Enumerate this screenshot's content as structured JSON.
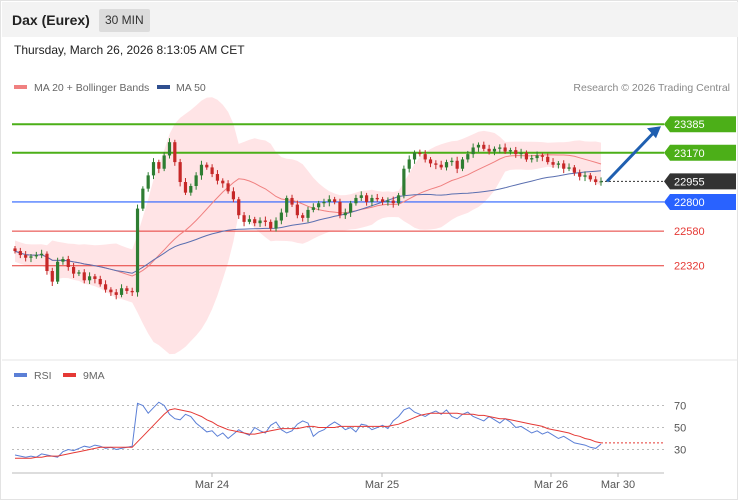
{
  "header": {
    "title": "Dax (Eurex)",
    "timeframe": "30 MIN"
  },
  "timestamp": "Thursday, March 26, 2026 8:13:05 AM CET",
  "copyright": "Research © 2026 Trading Central",
  "colors": {
    "candle_up": "#2e7d32",
    "candle_down": "#c62828",
    "band_fill": "#ffcdd2",
    "ma20": "#ef5350",
    "ma50": "#3f51b5",
    "resistance": "#4caf18",
    "pivot": "#2962ff",
    "support": "#e53935",
    "last_price": "#333333",
    "forecast_arrow": "#1f5fb0",
    "rsi": "#5b7fd6",
    "rsi_ma": "#e53935"
  },
  "chart_data": [
    {
      "type": "candlestick",
      "name": "price",
      "title": "Dax (Eurex)",
      "legend": [
        {
          "label": "MA 20 + Bollinger Bands",
          "color": "#f08080"
        },
        {
          "label": "MA 50",
          "color": "#2f4f8f"
        }
      ],
      "levels": [
        {
          "value": 23385,
          "label": "23385",
          "kind": "resistance"
        },
        {
          "value": 23170,
          "label": "23170",
          "kind": "resistance"
        },
        {
          "value": 22955,
          "label": "22955",
          "kind": "last"
        },
        {
          "value": 22800,
          "label": "22800",
          "kind": "pivot"
        },
        {
          "value": 22580,
          "label": "22580",
          "kind": "support"
        },
        {
          "value": 22320,
          "label": "22320",
          "kind": "support"
        }
      ],
      "x_ticks": [
        "Mar 24",
        "Mar 25",
        "Mar 26",
        "Mar 30"
      ],
      "y_range": [
        21640,
        23560
      ],
      "candles_approx_close": [
        22430,
        22400,
        22380,
        22390,
        22400,
        22410,
        22280,
        22200,
        22350,
        22370,
        22310,
        22260,
        22270,
        22210,
        22240,
        22220,
        22180,
        22140,
        22120,
        22100,
        22150,
        22130,
        22120,
        22750,
        22900,
        23000,
        23100,
        23050,
        23150,
        23250,
        23100,
        22950,
        22870,
        22920,
        23000,
        23080,
        23060,
        23010,
        22960,
        22940,
        22880,
        22820,
        22700,
        22650,
        22670,
        22640,
        22660,
        22650,
        22600,
        22660,
        22720,
        22830,
        22780,
        22700,
        22680,
        22740,
        22760,
        22790,
        22800,
        22820,
        22800,
        22700,
        22720,
        22790,
        22830,
        22850,
        22800,
        22830,
        22820,
        22800,
        22810,
        22790,
        22850,
        23050,
        23120,
        23170,
        23160,
        23120,
        23090,
        23080,
        23060,
        23100,
        23110,
        23050,
        23120,
        23160,
        23210,
        23230,
        23200,
        23180,
        23200,
        23210,
        23180,
        23190,
        23160,
        23170,
        23120,
        23130,
        23150,
        23140,
        23100,
        23080,
        23090,
        23050,
        23060,
        23020,
        22990,
        23000,
        22970,
        22950,
        22955
      ],
      "forecast_target": 23385
    },
    {
      "type": "line",
      "name": "RSI",
      "legend": [
        {
          "label": "RSI",
          "color": "#5b7fd6"
        },
        {
          "label": "9MA",
          "color": "#e53935"
        }
      ],
      "y_ticks": [
        70,
        50,
        30
      ],
      "y_range": [
        15,
        85
      ],
      "rsi": [
        25,
        24,
        23,
        24,
        23,
        26,
        25,
        24,
        23,
        28,
        30,
        29,
        31,
        33,
        32,
        34,
        33,
        31,
        32,
        30,
        31,
        32,
        33,
        72,
        70,
        63,
        68,
        73,
        70,
        62,
        58,
        57,
        62,
        60,
        54,
        50,
        46,
        47,
        42,
        45,
        40,
        44,
        48,
        45,
        43,
        50,
        47,
        45,
        52,
        55,
        48,
        45,
        47,
        53,
        56,
        54,
        42,
        46,
        48,
        52,
        55,
        52,
        48,
        50,
        46,
        53,
        52,
        48,
        50,
        52,
        49,
        56,
        60,
        66,
        68,
        64,
        62,
        60,
        63,
        65,
        62,
        66,
        60,
        58,
        62,
        64,
        60,
        58,
        56,
        60,
        57,
        54,
        58,
        55,
        50,
        51,
        48,
        45,
        47,
        44,
        46,
        43,
        40,
        42,
        39,
        36,
        35,
        34,
        32,
        31,
        35
      ],
      "ma9": [
        22,
        22,
        22,
        22,
        23,
        23,
        24,
        24,
        24,
        25,
        26,
        27,
        28,
        29,
        30,
        31,
        32,
        32,
        32,
        32,
        32,
        32,
        32,
        37,
        42,
        47,
        52,
        57,
        62,
        66,
        67,
        66,
        65,
        64,
        62,
        60,
        57,
        55,
        52,
        50,
        48,
        47,
        46,
        45,
        44,
        44,
        45,
        46,
        47,
        48,
        49,
        49,
        49,
        49,
        50,
        51,
        51,
        50,
        50,
        50,
        50,
        51,
        51,
        51,
        51,
        51,
        51,
        51,
        51,
        51,
        51,
        52,
        53,
        55,
        57,
        59,
        61,
        62,
        63,
        63,
        63,
        63,
        63,
        63,
        62,
        62,
        62,
        61,
        61,
        60,
        59,
        58,
        58,
        57,
        56,
        55,
        54,
        53,
        52,
        51,
        49,
        48,
        47,
        46,
        45,
        43,
        42,
        40,
        39,
        37,
        36
      ]
    }
  ]
}
